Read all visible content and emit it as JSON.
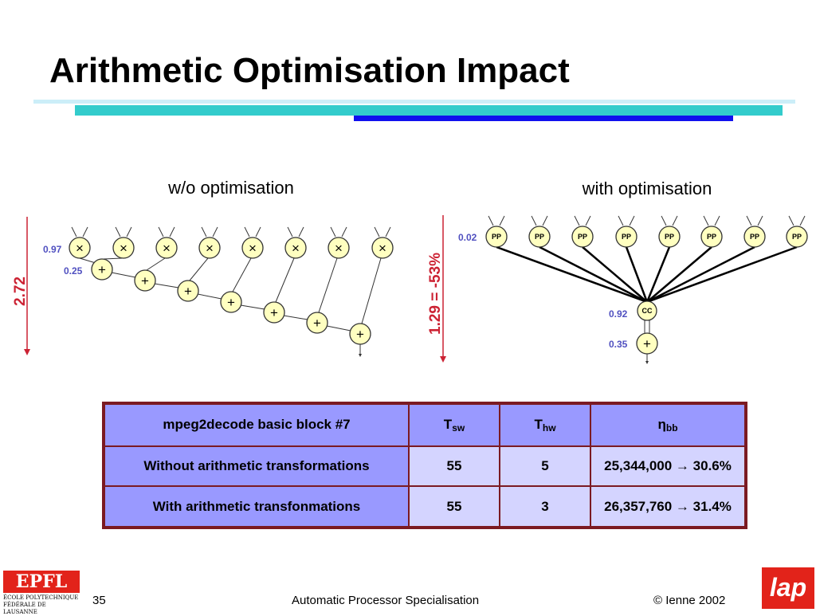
{
  "slide": {
    "title": "Arithmetic Optimisation Impact",
    "colors": {
      "accent_cyan": "#33cccc",
      "accent_blue": "#0000ff",
      "table_border": "#7b1a22",
      "table_header": "#9999ff",
      "table_cell": "#d4d4ff",
      "node_fill": "#ffffc0"
    }
  },
  "diagrams": {
    "left": {
      "heading": "w/o optimisation",
      "delay_label": "2.72",
      "mult_label": "0.97",
      "add_label": "0.25",
      "mult_symbol": "×",
      "add_symbol": "+"
    },
    "right": {
      "heading": "with optimisation",
      "delay_label": "1.29 = -53%",
      "pp_label": "0.02",
      "cc_label": "0.92",
      "add_label": "0.35",
      "pp_text": "PP",
      "cc_text": "CC",
      "add_symbol": "+"
    }
  },
  "table": {
    "header": {
      "name": "mpeg2decode basic block #7",
      "tsw": "T",
      "tsw_sub": "sw",
      "thw": "T",
      "thw_sub": "hw",
      "eta": "η",
      "eta_sub": "bb"
    },
    "rows": [
      {
        "name": "Without arithmetic transformations",
        "tsw": "55",
        "thw": "5",
        "eta": "25,344,000 → 30.6%"
      },
      {
        "name": "With arithmetic transfonmations",
        "tsw": "55",
        "thw": "3",
        "eta": "26,357,760 → 31.4%"
      }
    ]
  },
  "footer": {
    "page": "35",
    "center": "Automatic Processor Specialisation",
    "copyright": "© Ienne 2002",
    "epfl_logo": "EPFL",
    "epfl_line1": "ÉCOLE POLYTECHNIQUE",
    "epfl_line2": "FÉDÉRALE DE LAUSANNE",
    "lap_logo": "lap"
  }
}
